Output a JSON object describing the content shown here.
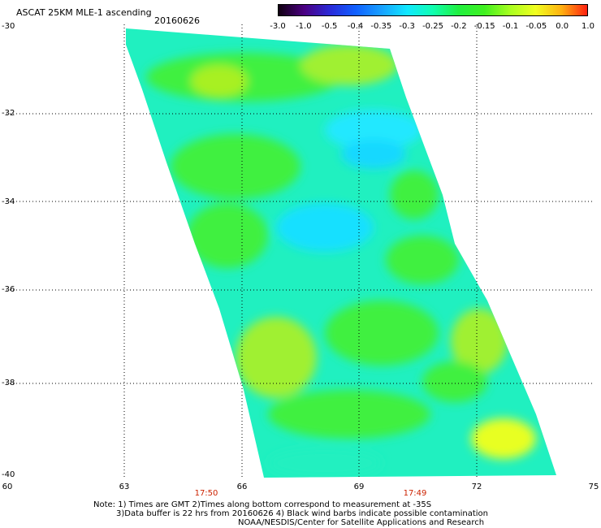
{
  "title": "ASCAT 25KM MLE-1 ascending",
  "date": "20160626",
  "color_scale": {
    "labels": [
      "-3.0",
      "-1.0",
      "-0.5",
      "-0.4",
      "-0.35",
      "-0.3",
      "-0.25",
      "-0.2",
      "-0.15",
      "-0.1",
      "-0.05",
      "0.0",
      "1.0"
    ],
    "colors": [
      "#100010",
      "#4b0082",
      "#2a2ad8",
      "#1060ff",
      "#18a0ff",
      "#10e8ff",
      "#10ffb0",
      "#20f040",
      "#40f020",
      "#a8ff20",
      "#f0ff20",
      "#ffb010",
      "#ff2010"
    ]
  },
  "axes": {
    "lat_labels": [
      "-30",
      "-32",
      "-34",
      "-36",
      "-38",
      "-40"
    ],
    "lon_labels": [
      "60",
      "63",
      "66",
      "69",
      "72",
      "75"
    ]
  },
  "times": [
    "17:50",
    "17:49"
  ],
  "notes": [
    "Note: 1) Times are GMT 2)Times along bottom correspond to measurement at -35S",
    "3)Data buffer is 22 hrs from 20160626 4) Black wind barbs indicate possible contamination",
    "NOAA/NESDIS/Center for Satellite Applications and Research"
  ]
}
